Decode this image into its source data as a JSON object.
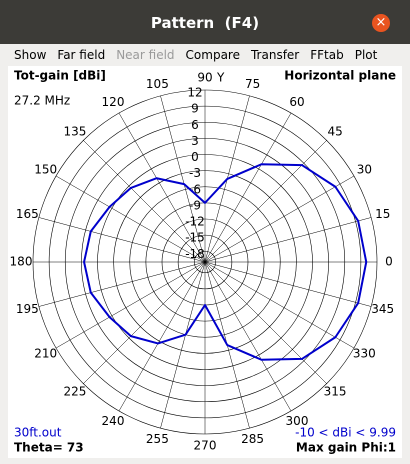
{
  "window": {
    "title": "Pattern  (F4)"
  },
  "menu": [
    "Show",
    "Far field",
    "Near field",
    "Compare",
    "Transfer",
    "FFtab",
    "Plot"
  ],
  "chart_data": {
    "type": "polar",
    "title": "Tot-gain [dBi]",
    "subtitle": "Horizontal plane",
    "frequency": "27.2 MHz",
    "axis_label": "Y",
    "file": "30ft.out",
    "theta": "Theta= 73",
    "range_text": "-10 < dBi < 9.99",
    "max_gain": "Max gain Phi:1",
    "xlim": [
      0,
      360
    ],
    "xticks": [
      0,
      15,
      30,
      45,
      60,
      75,
      90,
      105,
      120,
      135,
      150,
      165,
      180,
      195,
      210,
      225,
      240,
      255,
      270,
      285,
      300,
      315,
      330,
      345
    ],
    "ylim": [
      -20,
      12
    ],
    "yticks": [
      12,
      9,
      6,
      3,
      0,
      -3,
      -6,
      -9,
      -12,
      -15,
      -18
    ],
    "grid": true,
    "series": [
      {
        "color": "#0000cc",
        "x": [
          0,
          15,
          30,
          45,
          60,
          75,
          90,
          105,
          120,
          135,
          150,
          165,
          180,
          195,
          210,
          225,
          240,
          255,
          270,
          285,
          300,
          315,
          330,
          345
        ],
        "values": [
          10,
          9.5,
          8,
          5.5,
          1,
          -4,
          -9,
          -5,
          -2,
          -0.5,
          0.5,
          2,
          2.5,
          2,
          0.5,
          -0.5,
          -2.5,
          -6,
          -12,
          -4,
          1,
          5.5,
          8,
          9.5
        ]
      }
    ]
  }
}
